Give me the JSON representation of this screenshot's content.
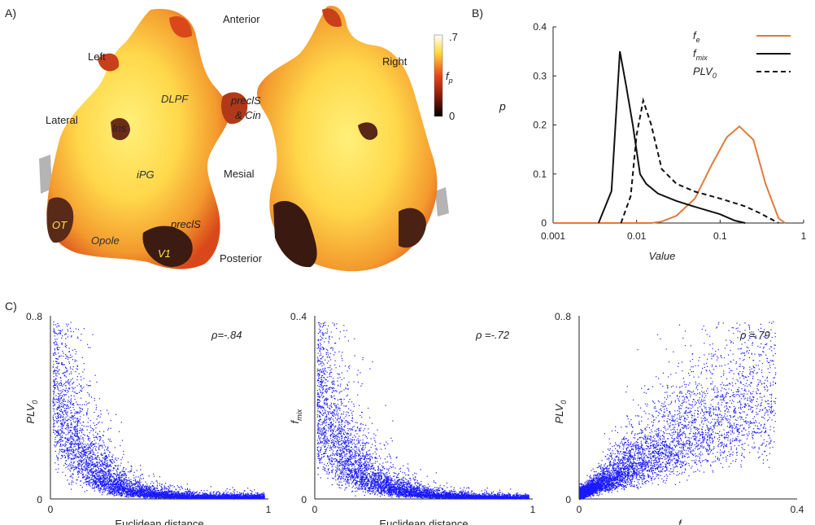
{
  "panels": {
    "a": "A)",
    "b": "B)",
    "c": "C)"
  },
  "brain_map": {
    "direction_labels": {
      "anterior": "Anterior",
      "posterior": "Posterior",
      "left": "Left",
      "right": "Right",
      "lateral": "Lateral",
      "mesial": "Mesial"
    },
    "region_labels": {
      "dlpf": "DLPF",
      "ins": "Ins",
      "ipg": "iPG",
      "ot": "OT",
      "opole": "Opole",
      "v1": "V1",
      "precls_lower": "preclS",
      "precls_upper": "preclS",
      "cin": "& Cin"
    },
    "colorbar": {
      "max_label": ".7",
      "min_label": "0",
      "var": "f",
      "sub": "p"
    },
    "colors": {
      "low": "#1a0a05",
      "mid": "#e8451a",
      "high": "#ffef6a",
      "top": "#ffffff",
      "medial_wall": "#b0b0b0"
    }
  },
  "chart_data": [
    {
      "type": "line",
      "panel": "B",
      "xlabel": "Value",
      "ylabel": "p",
      "xscale": "log",
      "xlim": [
        0.001,
        1
      ],
      "ylim": [
        0,
        0.4
      ],
      "xticks": [
        "0.001",
        "0.01",
        "0.1",
        "1"
      ],
      "yticks": [
        "0",
        "0.1",
        "0.2",
        "0.3",
        "0.4"
      ],
      "legend_position": "top-right",
      "series": [
        {
          "name": "f",
          "sub": "e",
          "color": "#e07a3a",
          "dash": false,
          "x": [
            0.001,
            0.003,
            0.01,
            0.015,
            0.02,
            0.03,
            0.05,
            0.08,
            0.12,
            0.17,
            0.25,
            0.35,
            0.5,
            0.6
          ],
          "y": [
            0,
            0,
            0,
            0,
            0.003,
            0.015,
            0.05,
            0.12,
            0.175,
            0.197,
            0.17,
            0.08,
            0.01,
            0
          ]
        },
        {
          "name": "f",
          "sub": "mix",
          "color": "#111111",
          "dash": false,
          "x": [
            0.0035,
            0.005,
            0.0063,
            0.0075,
            0.009,
            0.011,
            0.013,
            0.018,
            0.03,
            0.05,
            0.1,
            0.15,
            0.2
          ],
          "y": [
            0,
            0.065,
            0.35,
            0.28,
            0.2,
            0.1,
            0.08,
            0.06,
            0.045,
            0.033,
            0.018,
            0.005,
            0
          ]
        },
        {
          "name": "PLV",
          "sub": "0",
          "color": "#111111",
          "dash": true,
          "x": [
            0.0065,
            0.0085,
            0.01,
            0.012,
            0.015,
            0.02,
            0.03,
            0.05,
            0.1,
            0.2,
            0.3,
            0.5
          ],
          "y": [
            0,
            0.055,
            0.18,
            0.25,
            0.2,
            0.11,
            0.08,
            0.064,
            0.05,
            0.034,
            0.02,
            0
          ]
        }
      ]
    },
    {
      "type": "scatter",
      "panel": "C1",
      "xlabel": "Euclidean distance",
      "ylabel": "PLV",
      "ylabel_sub": "0",
      "xlim": [
        0,
        1
      ],
      "ylim": [
        0,
        0.8
      ],
      "xticks": [
        "0",
        "1"
      ],
      "yticks": [
        "0",
        "0.8"
      ],
      "annotation": "ρ=-.84",
      "color": "#1a1aff",
      "trend": {
        "shape": "decay",
        "a": 0.75,
        "k": 8.0,
        "offset": 0.01
      }
    },
    {
      "type": "scatter",
      "panel": "C2",
      "xlabel": "Euclidean distance",
      "ylabel": "f",
      "ylabel_sub": "mix",
      "xlim": [
        0,
        1
      ],
      "ylim": [
        0,
        0.4
      ],
      "xticks": [
        "0",
        "1"
      ],
      "yticks": [
        "0",
        "0.4"
      ],
      "annotation": "ρ =-.72",
      "color": "#1a1aff",
      "trend": {
        "shape": "decay",
        "a": 0.32,
        "k": 7.0,
        "offset": 0.004
      }
    },
    {
      "type": "scatter",
      "panel": "C3",
      "xlabel": "f",
      "xlabel_sub": "mix",
      "ylabel": "PLV",
      "ylabel_sub": "0",
      "xlim": [
        0,
        0.4
      ],
      "ylim": [
        0,
        0.8
      ],
      "xticks": [
        "0",
        "0.4"
      ],
      "yticks": [
        "0",
        "0.8"
      ],
      "annotation": "ρ =.79",
      "color": "#1a1aff",
      "trend": {
        "shape": "linear",
        "slope": 1.35
      }
    }
  ]
}
